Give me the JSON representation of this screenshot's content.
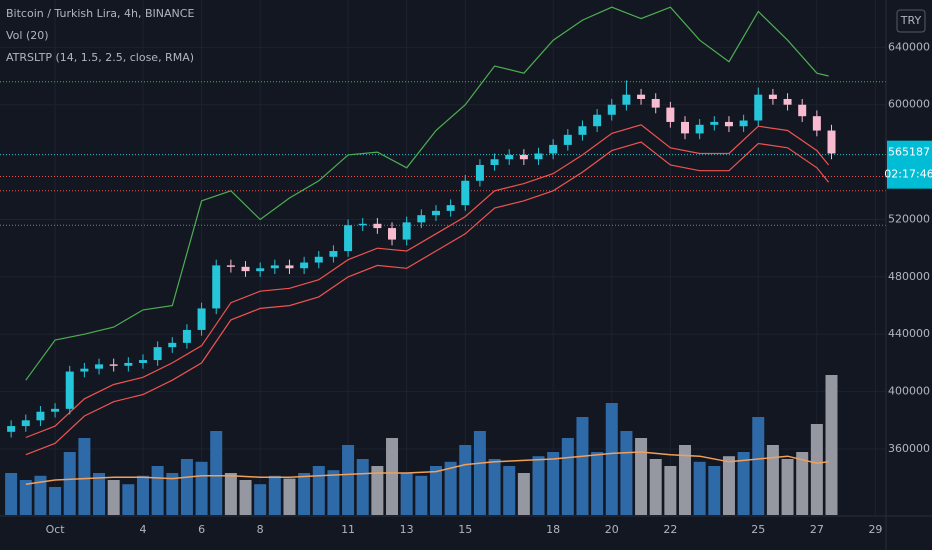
{
  "chart_data": {
    "type": "candlestick",
    "title": "Bitcoin / Turkish Lira, 4h, BINANCE",
    "indicators": [
      "Vol (20)",
      "ATRSLTP (14, 1.5, 2.5, close, RMA)"
    ],
    "currency": "TRY",
    "last_price": 565187,
    "countdown": "02:17:46",
    "xlim": [
      -0.88,
      29.36
    ],
    "xticks": [
      {
        "value": 1,
        "label": "Oct"
      },
      4,
      6,
      8,
      11,
      13,
      15,
      18,
      20,
      22,
      25,
      27,
      29
    ],
    "ylim": [
      314000,
      673000
    ],
    "yticks": [
      360000,
      400000,
      440000,
      480000,
      520000,
      600000,
      640000
    ],
    "grid": true,
    "up_color": "#26c6da",
    "down_color": "#f8bbd0",
    "candles": {
      "x": [
        -0.5,
        0,
        0.5,
        1,
        1.5,
        2,
        2.5,
        3,
        3.5,
        4,
        4.5,
        5,
        5.5,
        6,
        6.5,
        7,
        7.5,
        8,
        8.5,
        9,
        9.5,
        10,
        10.5,
        11,
        11.5,
        12,
        12.5,
        13,
        13.5,
        14,
        14.5,
        15,
        15.5,
        16,
        16.5,
        17,
        17.5,
        18,
        18.5,
        19,
        19.5,
        20,
        20.5,
        21,
        21.5,
        22,
        22.5,
        23,
        23.5,
        24,
        24.5,
        25,
        25.5,
        26,
        26.5,
        27,
        27.5
      ],
      "open": [
        372000,
        376000,
        380000,
        386000,
        388000,
        414000,
        416000,
        419000,
        418000,
        420000,
        422000,
        431000,
        434000,
        443000,
        458000,
        488000,
        487000,
        484000,
        486000,
        488000,
        486000,
        490000,
        494000,
        498000,
        516000,
        517000,
        514000,
        506000,
        518000,
        523000,
        526000,
        530000,
        547000,
        558000,
        562000,
        565000,
        562000,
        566000,
        572000,
        579000,
        585000,
        593000,
        600000,
        607000,
        604000,
        598000,
        588000,
        580000,
        586000,
        588000,
        585000,
        589000,
        607000,
        604000,
        600000,
        592000,
        582000
      ],
      "high": [
        380000,
        384000,
        390000,
        392000,
        418000,
        420000,
        423000,
        423000,
        424000,
        426000,
        435000,
        438000,
        447000,
        462000,
        492000,
        492000,
        491000,
        490000,
        492000,
        492000,
        494000,
        498000,
        502000,
        520000,
        521000,
        521000,
        518000,
        522000,
        527000,
        530000,
        534000,
        551000,
        562000,
        566000,
        569000,
        569000,
        570000,
        576000,
        583000,
        589000,
        597000,
        604000,
        617000,
        611000,
        608000,
        602000,
        592000,
        590000,
        592000,
        592000,
        593000,
        612000,
        611000,
        608000,
        604000,
        596000,
        586000
      ],
      "low": [
        368000,
        372000,
        376000,
        382000,
        384000,
        410000,
        412000,
        414000,
        414000,
        416000,
        418000,
        427000,
        430000,
        439000,
        454000,
        483000,
        480000,
        480000,
        482000,
        482000,
        482000,
        486000,
        490000,
        494000,
        512000,
        510000,
        502000,
        502000,
        514000,
        519000,
        522000,
        526000,
        543000,
        554000,
        558000,
        558000,
        558000,
        562000,
        568000,
        575000,
        581000,
        589000,
        596000,
        600000,
        594000,
        584000,
        576000,
        576000,
        582000,
        581000,
        581000,
        585000,
        600000,
        596000,
        588000,
        578000,
        562000
      ],
      "close": [
        376000,
        380000,
        386000,
        388000,
        414000,
        416000,
        419000,
        418000,
        420000,
        422000,
        431000,
        434000,
        443000,
        458000,
        488000,
        487000,
        484000,
        486000,
        488000,
        486000,
        490000,
        494000,
        498000,
        516000,
        517000,
        514000,
        506000,
        518000,
        523000,
        526000,
        530000,
        547000,
        558000,
        562000,
        565000,
        562000,
        566000,
        572000,
        579000,
        585000,
        593000,
        600000,
        607000,
        604000,
        598000,
        588000,
        580000,
        586000,
        588000,
        585000,
        589000,
        607000,
        604000,
        600000,
        592000,
        582000,
        566000
      ]
    },
    "volume": {
      "up_color": "#2f6aa8",
      "down_color": "#9598a1",
      "values": [
        30,
        25,
        28,
        20,
        45,
        55,
        30,
        25,
        22,
        28,
        35,
        30,
        40,
        38,
        60,
        30,
        25,
        22,
        28,
        26,
        30,
        35,
        32,
        50,
        40,
        35,
        55,
        30,
        28,
        35,
        38,
        50,
        60,
        40,
        35,
        30,
        42,
        45,
        55,
        70,
        45,
        80,
        60,
        55,
        40,
        35,
        50,
        38,
        35,
        42,
        45,
        70,
        50,
        40,
        45,
        65,
        100
      ]
    },
    "series": [
      {
        "color": "#4caf50",
        "x": [
          0,
          1,
          2,
          3,
          4,
          5,
          6,
          7,
          8,
          9,
          10,
          11,
          12,
          13,
          14,
          15,
          16,
          17,
          18,
          19,
          20,
          21,
          22,
          23,
          24,
          25,
          26,
          27,
          27.4
        ],
        "values": [
          408000,
          436000,
          440000,
          445000,
          457000,
          460000,
          533000,
          540000,
          520000,
          535000,
          547000,
          565000,
          567000,
          556000,
          582000,
          600000,
          627000,
          622000,
          645000,
          659000,
          668000,
          660000,
          668000,
          645000,
          630000,
          665000,
          645000,
          622000,
          620000
        ]
      },
      {
        "color": "#ef5350",
        "x": [
          0,
          1,
          2,
          3,
          4,
          5,
          6,
          7,
          8,
          9,
          10,
          11,
          12,
          13,
          14,
          15,
          16,
          17,
          18,
          19,
          20,
          21,
          22,
          23,
          24,
          25,
          26,
          27,
          27.4
        ],
        "values": [
          368000,
          376000,
          395000,
          405000,
          410000,
          420000,
          432000,
          462000,
          470000,
          472000,
          478000,
          492000,
          500000,
          498000,
          510000,
          522000,
          540000,
          545000,
          552000,
          565000,
          580000,
          586000,
          570000,
          566000,
          566000,
          585000,
          582000,
          568000,
          558000
        ]
      },
      {
        "color": "#ef5350",
        "x": [
          0,
          1,
          2,
          3,
          4,
          5,
          6,
          7,
          8,
          9,
          10,
          11,
          12,
          13,
          14,
          15,
          16,
          17,
          18,
          19,
          20,
          21,
          22,
          23,
          24,
          25,
          26,
          27,
          27.4
        ],
        "values": [
          356000,
          364000,
          383000,
          393000,
          398000,
          408000,
          420000,
          450000,
          458000,
          460000,
          466000,
          480000,
          488000,
          486000,
          498000,
          510000,
          528000,
          533000,
          540000,
          553000,
          568000,
          574000,
          558000,
          554000,
          554000,
          573000,
          570000,
          556000,
          546000
        ]
      }
    ],
    "volume_ma": {
      "color": "#f0a05a",
      "x": [
        0,
        1,
        2,
        3,
        4,
        5,
        6,
        7,
        8,
        9,
        10,
        11,
        12,
        13,
        14,
        15,
        16,
        17,
        18,
        19,
        20,
        21,
        22,
        23,
        24,
        25,
        26,
        27,
        27.4
      ],
      "values": [
        22,
        25,
        26,
        27,
        27,
        26,
        28,
        28,
        27,
        27,
        28,
        29,
        30,
        30,
        31,
        36,
        38,
        39,
        40,
        42,
        44,
        45,
        43,
        42,
        38,
        40,
        42,
        37,
        38
      ]
    },
    "price_lines": [
      {
        "value": 616000,
        "color": "#4caf50"
      },
      {
        "value": 550000,
        "color": "#ef5350"
      },
      {
        "value": 540000,
        "color": "#ef5350"
      },
      {
        "value": 516000,
        "color": "#787b86"
      }
    ]
  }
}
